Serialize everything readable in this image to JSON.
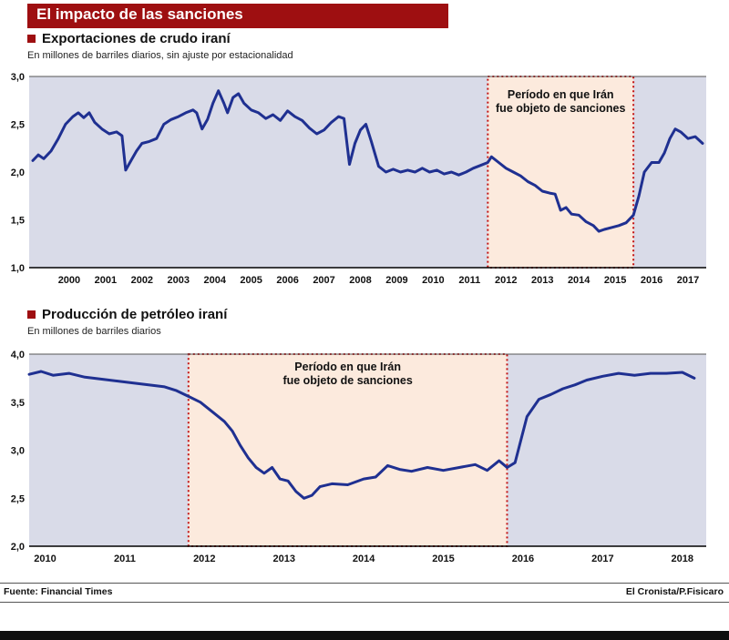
{
  "header": {
    "title": "El impacto de las sanciones"
  },
  "footer": {
    "source": "Fuente: Financial Times",
    "credit": "El Cronista/P.Fisicaro"
  },
  "colors": {
    "header_bg": "#9e0f11",
    "accent_red": "#c41414",
    "line_navy": "#1f3091",
    "plot_bg": "#d9dbe8",
    "band_fill": "#fceadd"
  },
  "chart_data": [
    {
      "type": "line",
      "title": "Exportaciones de crudo iraní",
      "subtitle": "En millones de barriles diarios, sin ajuste por estacionalidad",
      "xlim": [
        1999.4,
        2018.0
      ],
      "ylim": [
        1.0,
        3.0
      ],
      "margins": {
        "l": 32,
        "r": 25,
        "t": 13,
        "b": 26
      },
      "colors": {
        "plot_bg": "#d9dbe8",
        "band_fill": "#fceadd",
        "band_border": "#c41414",
        "line": "#1f3091"
      },
      "yticks": [
        {
          "v": 3.0,
          "label": "3,0"
        },
        {
          "v": 2.5,
          "label": "2,5"
        },
        {
          "v": 2.0,
          "label": "2,0"
        },
        {
          "v": 1.5,
          "label": "1,5"
        },
        {
          "v": 1.0,
          "label": "1,0"
        }
      ],
      "xticks": [
        {
          "pos": 2000.5,
          "label": "2000"
        },
        {
          "pos": 2001.5,
          "label": "2001"
        },
        {
          "pos": 2002.5,
          "label": "2002"
        },
        {
          "pos": 2003.5,
          "label": "2003"
        },
        {
          "pos": 2004.5,
          "label": "2004"
        },
        {
          "pos": 2005.5,
          "label": "2005"
        },
        {
          "pos": 2006.5,
          "label": "2006"
        },
        {
          "pos": 2007.5,
          "label": "2007"
        },
        {
          "pos": 2008.5,
          "label": "2008"
        },
        {
          "pos": 2009.5,
          "label": "2009"
        },
        {
          "pos": 2010.5,
          "label": "2010"
        },
        {
          "pos": 2011.5,
          "label": "2011"
        },
        {
          "pos": 2012.5,
          "label": "2012"
        },
        {
          "pos": 2013.5,
          "label": "2013"
        },
        {
          "pos": 2014.5,
          "label": "2014"
        },
        {
          "pos": 2015.5,
          "label": "2015"
        },
        {
          "pos": 2016.5,
          "label": "2016"
        },
        {
          "pos": 2017.5,
          "label": "2017"
        }
      ],
      "sanctions_band": {
        "from": 2012,
        "to": 2016,
        "label_lines": [
          "Período en que Irán",
          "fue objeto de sanciones"
        ],
        "label_dy": 24
      },
      "points": [
        [
          1999.5,
          2.12
        ],
        [
          1999.65,
          2.18
        ],
        [
          1999.8,
          2.14
        ],
        [
          2000.0,
          2.22
        ],
        [
          2000.2,
          2.35
        ],
        [
          2000.4,
          2.5
        ],
        [
          2000.6,
          2.58
        ],
        [
          2000.75,
          2.62
        ],
        [
          2000.9,
          2.57
        ],
        [
          2001.05,
          2.62
        ],
        [
          2001.2,
          2.52
        ],
        [
          2001.4,
          2.45
        ],
        [
          2001.6,
          2.4
        ],
        [
          2001.8,
          2.42
        ],
        [
          2001.95,
          2.38
        ],
        [
          2002.05,
          2.02
        ],
        [
          2002.2,
          2.12
        ],
        [
          2002.35,
          2.22
        ],
        [
          2002.5,
          2.3
        ],
        [
          2002.7,
          2.32
        ],
        [
          2002.9,
          2.35
        ],
        [
          2003.1,
          2.5
        ],
        [
          2003.3,
          2.55
        ],
        [
          2003.5,
          2.58
        ],
        [
          2003.7,
          2.62
        ],
        [
          2003.9,
          2.65
        ],
        [
          2004.0,
          2.62
        ],
        [
          2004.15,
          2.45
        ],
        [
          2004.3,
          2.55
        ],
        [
          2004.45,
          2.72
        ],
        [
          2004.6,
          2.85
        ],
        [
          2004.75,
          2.72
        ],
        [
          2004.85,
          2.62
        ],
        [
          2005.0,
          2.78
        ],
        [
          2005.15,
          2.82
        ],
        [
          2005.3,
          2.72
        ],
        [
          2005.5,
          2.65
        ],
        [
          2005.7,
          2.62
        ],
        [
          2005.9,
          2.56
        ],
        [
          2006.1,
          2.6
        ],
        [
          2006.3,
          2.54
        ],
        [
          2006.5,
          2.64
        ],
        [
          2006.7,
          2.58
        ],
        [
          2006.9,
          2.54
        ],
        [
          2007.1,
          2.46
        ],
        [
          2007.3,
          2.4
        ],
        [
          2007.5,
          2.44
        ],
        [
          2007.7,
          2.52
        ],
        [
          2007.9,
          2.58
        ],
        [
          2008.05,
          2.56
        ],
        [
          2008.2,
          2.08
        ],
        [
          2008.35,
          2.3
        ],
        [
          2008.5,
          2.44
        ],
        [
          2008.65,
          2.5
        ],
        [
          2008.8,
          2.32
        ],
        [
          2009.0,
          2.06
        ],
        [
          2009.2,
          2.0
        ],
        [
          2009.4,
          2.03
        ],
        [
          2009.6,
          2.0
        ],
        [
          2009.8,
          2.02
        ],
        [
          2010.0,
          2.0
        ],
        [
          2010.2,
          2.04
        ],
        [
          2010.4,
          2.0
        ],
        [
          2010.6,
          2.02
        ],
        [
          2010.8,
          1.98
        ],
        [
          2011.0,
          2.0
        ],
        [
          2011.2,
          1.97
        ],
        [
          2011.4,
          2.0
        ],
        [
          2011.6,
          2.04
        ],
        [
          2011.8,
          2.07
        ],
        [
          2012.0,
          2.1
        ],
        [
          2012.1,
          2.16
        ],
        [
          2012.3,
          2.1
        ],
        [
          2012.5,
          2.04
        ],
        [
          2012.7,
          2.0
        ],
        [
          2012.9,
          1.96
        ],
        [
          2013.1,
          1.9
        ],
        [
          2013.3,
          1.86
        ],
        [
          2013.5,
          1.8
        ],
        [
          2013.7,
          1.78
        ],
        [
          2013.85,
          1.77
        ],
        [
          2014.0,
          1.6
        ],
        [
          2014.15,
          1.63
        ],
        [
          2014.3,
          1.56
        ],
        [
          2014.5,
          1.55
        ],
        [
          2014.7,
          1.48
        ],
        [
          2014.9,
          1.44
        ],
        [
          2015.05,
          1.38
        ],
        [
          2015.2,
          1.4
        ],
        [
          2015.4,
          1.42
        ],
        [
          2015.6,
          1.44
        ],
        [
          2015.8,
          1.47
        ],
        [
          2016.0,
          1.55
        ],
        [
          2016.15,
          1.75
        ],
        [
          2016.3,
          2.0
        ],
        [
          2016.5,
          2.1
        ],
        [
          2016.7,
          2.1
        ],
        [
          2016.85,
          2.2
        ],
        [
          2017.0,
          2.35
        ],
        [
          2017.15,
          2.45
        ],
        [
          2017.3,
          2.42
        ],
        [
          2017.5,
          2.35
        ],
        [
          2017.7,
          2.37
        ],
        [
          2017.9,
          2.3
        ]
      ]
    },
    {
      "type": "line",
      "title": "Producción de petróleo iraní",
      "subtitle": "En millones de barriles diarios",
      "xlim": [
        2010.0,
        2018.5
      ],
      "ylim": [
        2.0,
        4.0
      ],
      "margins": {
        "l": 32,
        "r": 25,
        "t": 14,
        "b": 26
      },
      "colors": {
        "plot_bg": "#d9dbe8",
        "band_fill": "#fceadd",
        "band_border": "#c41414",
        "line": "#1f3091"
      },
      "yticks": [
        {
          "v": 4.0,
          "label": "4,0"
        },
        {
          "v": 3.5,
          "label": "3,5"
        },
        {
          "v": 3.0,
          "label": "3,0"
        },
        {
          "v": 2.5,
          "label": "2,5"
        },
        {
          "v": 2.0,
          "label": "2,0"
        }
      ],
      "xticks": [
        {
          "pos": 2010.2,
          "label": "2010"
        },
        {
          "pos": 2011.2,
          "label": "2011"
        },
        {
          "pos": 2012.2,
          "label": "2012"
        },
        {
          "pos": 2013.2,
          "label": "2013"
        },
        {
          "pos": 2014.2,
          "label": "2014"
        },
        {
          "pos": 2015.2,
          "label": "2015"
        },
        {
          "pos": 2016.2,
          "label": "2016"
        },
        {
          "pos": 2017.2,
          "label": "2017"
        },
        {
          "pos": 2018.2,
          "label": "2018"
        }
      ],
      "sanctions_band": {
        "from": 2012,
        "to": 2016,
        "label_lines": [
          "Período en que Irán",
          "fue objeto de sanciones"
        ],
        "label_dy": 18
      },
      "points": [
        [
          2010.0,
          3.79
        ],
        [
          2010.15,
          3.82
        ],
        [
          2010.3,
          3.78
        ],
        [
          2010.5,
          3.8
        ],
        [
          2010.7,
          3.76
        ],
        [
          2010.9,
          3.74
        ],
        [
          2011.1,
          3.72
        ],
        [
          2011.3,
          3.7
        ],
        [
          2011.5,
          3.68
        ],
        [
          2011.7,
          3.66
        ],
        [
          2011.85,
          3.62
        ],
        [
          2012.0,
          3.56
        ],
        [
          2012.15,
          3.5
        ],
        [
          2012.3,
          3.4
        ],
        [
          2012.45,
          3.3
        ],
        [
          2012.55,
          3.2
        ],
        [
          2012.65,
          3.05
        ],
        [
          2012.75,
          2.92
        ],
        [
          2012.85,
          2.82
        ],
        [
          2012.95,
          2.76
        ],
        [
          2013.05,
          2.82
        ],
        [
          2013.15,
          2.7
        ],
        [
          2013.25,
          2.68
        ],
        [
          2013.35,
          2.57
        ],
        [
          2013.45,
          2.5
        ],
        [
          2013.55,
          2.53
        ],
        [
          2013.65,
          2.62
        ],
        [
          2013.8,
          2.65
        ],
        [
          2014.0,
          2.64
        ],
        [
          2014.2,
          2.7
        ],
        [
          2014.35,
          2.72
        ],
        [
          2014.5,
          2.84
        ],
        [
          2014.65,
          2.8
        ],
        [
          2014.8,
          2.78
        ],
        [
          2015.0,
          2.82
        ],
        [
          2015.2,
          2.79
        ],
        [
          2015.4,
          2.82
        ],
        [
          2015.6,
          2.85
        ],
        [
          2015.75,
          2.79
        ],
        [
          2015.9,
          2.89
        ],
        [
          2016.0,
          2.82
        ],
        [
          2016.1,
          2.87
        ],
        [
          2016.25,
          3.35
        ],
        [
          2016.4,
          3.53
        ],
        [
          2016.55,
          3.58
        ],
        [
          2016.7,
          3.64
        ],
        [
          2016.85,
          3.68
        ],
        [
          2017.0,
          3.73
        ],
        [
          2017.2,
          3.77
        ],
        [
          2017.4,
          3.8
        ],
        [
          2017.6,
          3.78
        ],
        [
          2017.8,
          3.8
        ],
        [
          2018.0,
          3.8
        ],
        [
          2018.2,
          3.81
        ],
        [
          2018.35,
          3.75
        ]
      ]
    }
  ]
}
